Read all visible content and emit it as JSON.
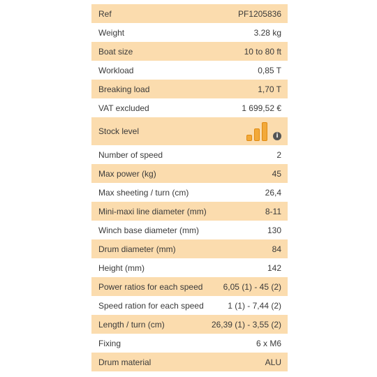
{
  "specs": [
    {
      "label": "Ref",
      "value": "PF1205836"
    },
    {
      "label": "Weight",
      "value": "3.28 kg"
    },
    {
      "label": "Boat size",
      "value": "10 to 80 ft"
    },
    {
      "label": "Workload",
      "value": "0,85 T"
    },
    {
      "label": "Breaking load",
      "value": "1,70 T"
    },
    {
      "label": "VAT excluded",
      "value": "1 699,52 €"
    },
    {
      "label": "Stock level",
      "stock_level": 3,
      "stock_max": 3,
      "bar_color": "#f2a93a",
      "info_icon": "info-icon"
    },
    {
      "label": "Number of speed",
      "value": "2"
    },
    {
      "label": "Max power (kg)",
      "value": "45"
    },
    {
      "label": "Max sheeting / turn (cm)",
      "value": "26,4"
    },
    {
      "label": "Mini-maxi line diameter (mm)",
      "value": "8-11"
    },
    {
      "label": "Winch base diameter (mm)",
      "value": "130"
    },
    {
      "label": "Drum diameter (mm)",
      "value": "84"
    },
    {
      "label": "Height (mm)",
      "value": "142"
    },
    {
      "label": "Power ratios for each speed",
      "value": "6,05 (1) - 45 (2)"
    },
    {
      "label": "Speed ration for each speed",
      "value": "1 (1) - 7,44 (2)"
    },
    {
      "label": "Length / turn (cm)",
      "value": "26,39 (1) - 3,55 (2)"
    },
    {
      "label": "Fixing",
      "value": "6 x M6"
    },
    {
      "label": "Drum material",
      "value": "ALU"
    }
  ],
  "colors": {
    "shaded_row": "#fbdcae",
    "text": "#3a3a3a"
  }
}
